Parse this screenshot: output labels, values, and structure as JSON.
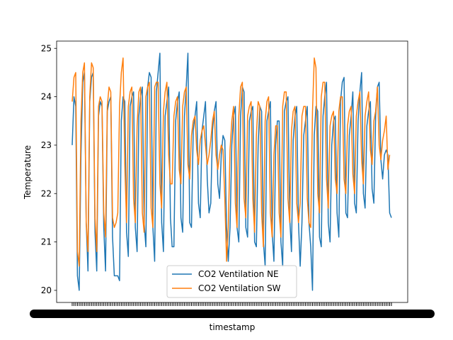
{
  "chart_data": {
    "type": "line",
    "xlabel": "timestamp",
    "ylabel": "Temperature",
    "ylim": [
      19.75,
      25.15
    ],
    "yticks": [
      20,
      21,
      22,
      23,
      24,
      25
    ],
    "ytick_labels": [
      "20",
      "21",
      "22",
      "23",
      "24",
      "25"
    ],
    "legend_position": "lower center",
    "grid": false,
    "series": [
      {
        "name": "CO2 Ventilation NE",
        "color": "#1f77b4",
        "values": [
          23.0,
          24.0,
          23.8,
          20.3,
          20.0,
          22.8,
          24.3,
          24.5,
          21.4,
          20.4,
          23.9,
          24.4,
          24.5,
          21.2,
          20.4,
          23.6,
          23.9,
          23.8,
          21.3,
          20.4,
          23.7,
          23.9,
          24.0,
          21.1,
          20.3,
          20.3,
          20.3,
          20.2,
          23.5,
          24.0,
          23.9,
          21.2,
          20.7,
          23.8,
          24.0,
          24.1,
          21.3,
          20.8,
          23.6,
          24.0,
          24.2,
          21.4,
          20.9,
          24.2,
          24.5,
          24.4,
          21.3,
          20.6,
          24.1,
          24.5,
          24.9,
          21.4,
          20.8,
          23.6,
          23.9,
          24.2,
          21.5,
          20.9,
          20.9,
          23.5,
          23.9,
          24.1,
          21.5,
          21.2,
          23.6,
          24.2,
          24.9,
          21.4,
          21.3,
          23.3,
          23.6,
          23.9,
          21.8,
          21.5,
          23.3,
          23.6,
          23.9,
          22.3,
          21.6,
          21.8,
          23.3,
          23.7,
          23.9,
          22.2,
          21.9,
          22.8,
          23.2,
          23.1,
          21.3,
          20.6,
          21.3,
          23.0,
          23.6,
          23.8,
          21.3,
          21.0,
          23.6,
          24.2,
          24.1,
          21.3,
          21.1,
          23.5,
          23.7,
          23.8,
          21.0,
          20.9,
          23.0,
          23.8,
          23.7,
          21.0,
          20.5,
          23.5,
          23.7,
          23.9,
          21.2,
          20.6,
          23.0,
          23.5,
          23.5,
          21.0,
          20.5,
          23.7,
          23.9,
          24.0,
          21.5,
          20.8,
          23.1,
          23.6,
          23.8,
          21.4,
          20.5,
          21.4,
          23.2,
          23.5,
          23.8,
          21.4,
          20.9,
          20.0,
          23.2,
          23.8,
          23.7,
          21.1,
          20.9,
          23.6,
          24.0,
          24.3,
          21.4,
          21.0,
          23.0,
          23.5,
          23.6,
          21.6,
          21.1,
          23.9,
          24.3,
          24.4,
          21.6,
          21.5,
          23.2,
          23.6,
          24.1,
          21.8,
          21.6,
          23.5,
          24.1,
          24.5,
          22.0,
          21.7,
          23.4,
          23.7,
          23.9,
          22.1,
          21.8,
          23.6,
          24.2,
          24.3,
          22.7,
          22.3,
          22.8,
          22.9,
          22.8,
          21.6,
          21.5
        ]
      },
      {
        "name": "CO2 Ventilation SW",
        "color": "#ff7f0e",
        "values": [
          23.9,
          24.4,
          24.5,
          20.8,
          20.5,
          23.5,
          24.5,
          24.7,
          21.4,
          20.8,
          24.0,
          24.7,
          24.6,
          21.5,
          20.8,
          23.8,
          24.0,
          23.9,
          21.6,
          21.1,
          23.8,
          24.2,
          24.1,
          21.5,
          21.3,
          21.4,
          21.6,
          23.8,
          24.5,
          24.8,
          22.6,
          21.4,
          23.8,
          24.1,
          24.2,
          21.9,
          21.4,
          23.4,
          24.1,
          24.2,
          21.6,
          21.2,
          24.0,
          24.2,
          24.3,
          21.7,
          21.3,
          24.2,
          24.3,
          24.3,
          22.2,
          21.7,
          23.7,
          24.1,
          24.3,
          22.8,
          22.2,
          22.2,
          23.6,
          23.9,
          24.0,
          22.5,
          22.2,
          23.8,
          24.1,
          24.2,
          22.6,
          22.3,
          23.2,
          23.5,
          23.6,
          22.9,
          22.6,
          23.1,
          23.3,
          23.4,
          23.0,
          22.6,
          22.8,
          23.1,
          23.5,
          23.7,
          22.8,
          22.5,
          22.8,
          23.0,
          22.9,
          21.9,
          20.6,
          21.3,
          22.9,
          23.5,
          23.8,
          21.8,
          21.3,
          23.6,
          24.2,
          24.3,
          21.9,
          21.5,
          23.6,
          23.8,
          23.9,
          21.9,
          21.2,
          23.2,
          23.9,
          23.8,
          21.6,
          20.9,
          23.5,
          23.9,
          24.0,
          21.6,
          21.1,
          22.8,
          23.4,
          23.4,
          21.6,
          21.1,
          23.8,
          24.1,
          24.1,
          21.9,
          21.4,
          23.3,
          23.7,
          23.8,
          21.8,
          21.4,
          21.8,
          23.6,
          23.8,
          23.8,
          21.9,
          21.4,
          21.3,
          23.7,
          24.8,
          24.6,
          22.0,
          21.6,
          24.0,
          24.3,
          24.3,
          22.3,
          21.7,
          23.4,
          23.6,
          23.7,
          22.3,
          22.0,
          23.7,
          24.0,
          24.0,
          22.3,
          22.0,
          23.4,
          23.7,
          23.8,
          22.4,
          22.0,
          23.6,
          23.9,
          24.1,
          22.7,
          22.2,
          23.6,
          23.9,
          24.1,
          22.9,
          22.6,
          23.5,
          23.7,
          24.2,
          23.0,
          22.7,
          23.1,
          23.3,
          23.6,
          22.5,
          22.8
        ]
      }
    ]
  }
}
